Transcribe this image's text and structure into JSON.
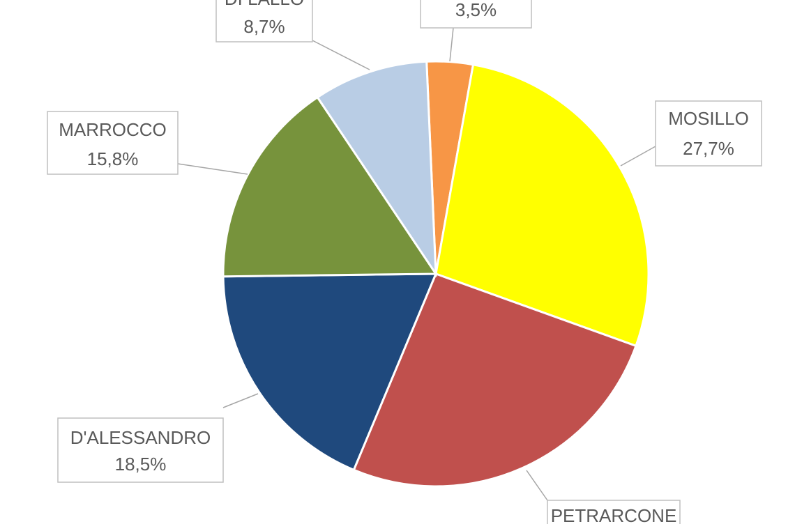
{
  "chart_data": {
    "type": "pie",
    "categories": [
      null,
      "MOSILLO",
      "PETRARCONE",
      "D'ALESSANDRO",
      "MARROCCO",
      "DI LALLO"
    ],
    "values": [
      3.5,
      27.7,
      25.8,
      18.5,
      15.8,
      8.7
    ],
    "value_labels": [
      "3,5%",
      "27,7%",
      null,
      "18,5%",
      "15,8%",
      "8,7%"
    ],
    "colors": [
      "#f79646",
      "#ffff00",
      "#c0504d",
      "#1f497d",
      "#77933c",
      "#b9cde5"
    ]
  }
}
